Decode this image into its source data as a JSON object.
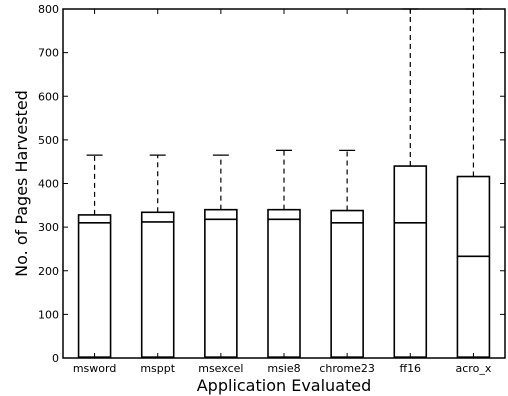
{
  "chart_data": {
    "type": "box",
    "xlabel": "Application Evaluated",
    "ylabel": "No. of Pages Harvested",
    "ylim": [
      0,
      800
    ],
    "yticks": [
      0,
      100,
      200,
      300,
      400,
      500,
      600,
      700,
      800
    ],
    "grid": false,
    "categories": [
      "msword",
      "msppt",
      "msexcel",
      "msie8",
      "chrome23",
      "ff16",
      "acro_x"
    ],
    "boxes": [
      {
        "min": 2,
        "q1": 2,
        "median": 310,
        "q3": 328,
        "max": 465
      },
      {
        "min": 2,
        "q1": 2,
        "median": 312,
        "q3": 334,
        "max": 465
      },
      {
        "min": 2,
        "q1": 2,
        "median": 318,
        "q3": 340,
        "max": 465
      },
      {
        "min": 2,
        "q1": 2,
        "median": 318,
        "q3": 340,
        "max": 476
      },
      {
        "min": 2,
        "q1": 2,
        "median": 310,
        "q3": 338,
        "max": 476
      },
      {
        "min": 2,
        "q1": 2,
        "median": 310,
        "q3": 440,
        "max": 800
      },
      {
        "min": 2,
        "q1": 2,
        "median": 233,
        "q3": 416,
        "max": 800
      }
    ],
    "colors": {
      "line": "#000000",
      "whisker": "#000000",
      "background": "#ffffff"
    }
  }
}
